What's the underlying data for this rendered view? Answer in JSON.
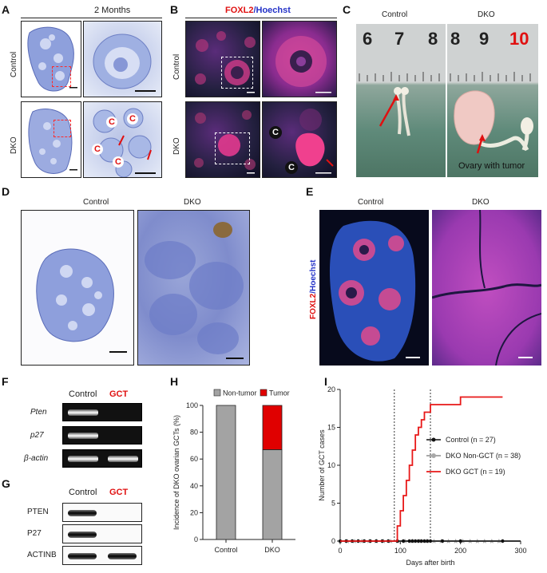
{
  "panels": {
    "a": {
      "letter": "A",
      "title": "2 Months",
      "row1": "Control",
      "row2": "DKO",
      "c_marks": [
        "C",
        "C",
        "C",
        "C"
      ]
    },
    "b": {
      "letter": "B",
      "title_red": "FOXL2",
      "title_blue": "/Hoechst",
      "row1": "Control",
      "row2": "DKO",
      "c_marks": [
        "C",
        "C"
      ]
    },
    "c": {
      "letter": "C",
      "col1": "Control",
      "col2": "DKO",
      "ruler_left": [
        "6",
        "7",
        "8"
      ],
      "ruler_right": [
        "8",
        "9",
        "10"
      ],
      "annotation": "Ovary with tumor"
    },
    "d": {
      "letter": "D",
      "col1": "Control",
      "col2": "DKO"
    },
    "e": {
      "letter": "E",
      "col1": "Control",
      "col2": "DKO",
      "side_red": "FOXL2",
      "side_blue": "/Hoechst"
    },
    "f": {
      "letter": "F",
      "col1": "Control",
      "col2": "GCT",
      "rows": [
        "Pten",
        "p27",
        "β-actin"
      ]
    },
    "g": {
      "letter": "G",
      "col1": "Control",
      "col2": "GCT",
      "rows": [
        "PTEN",
        "P27",
        "ACTINB"
      ]
    },
    "h": {
      "letter": "H"
    },
    "i": {
      "letter": "I"
    }
  },
  "colors": {
    "red": "#e01010",
    "control": "#111111",
    "nongct": "#a8a8a8",
    "gct": "#e81818",
    "tumor": "#e00000",
    "nontumor": "#a3a3a3"
  },
  "chart_data": [
    {
      "type": "bar",
      "panel": "H",
      "stacked": true,
      "categories": [
        "Control",
        "DKO"
      ],
      "series": [
        {
          "name": "Non-tumor",
          "values": [
            100,
            67
          ]
        },
        {
          "name": "Tumor",
          "values": [
            0,
            33
          ]
        }
      ],
      "ylabel": "Incidence of DKO ovarian GCTs (%)",
      "ylim": [
        0,
        100
      ],
      "yticks": [
        "0",
        "20",
        "40",
        "60",
        "80",
        "100"
      ],
      "legend": "top"
    },
    {
      "type": "line",
      "panel": "I",
      "xlabel": "Days after birth",
      "ylabel": "Number of GCT cases",
      "xlim": [
        0,
        300
      ],
      "ylim": [
        0,
        20
      ],
      "xticks": [
        "0",
        "100",
        "200",
        "300"
      ],
      "yticks": [
        "0",
        "5",
        "10",
        "15",
        "20"
      ],
      "vlines": [
        90,
        150
      ],
      "legend": "right",
      "series": [
        {
          "name": "Control (n = 27)",
          "x": [
            0,
            300
          ],
          "y": [
            0,
            0
          ]
        },
        {
          "name": "DKO Non-GCT (n = 38)",
          "x": [
            0,
            300
          ],
          "y": [
            0,
            0
          ]
        },
        {
          "name": "DKO GCT (n = 19)",
          "x": [
            0,
            90,
            95,
            100,
            105,
            110,
            115,
            120,
            125,
            130,
            135,
            140,
            145,
            150,
            160,
            170,
            180,
            195,
            200,
            270
          ],
          "y": [
            0,
            0,
            2,
            4,
            6,
            8,
            10,
            12,
            14,
            15,
            16,
            17,
            17,
            18,
            18,
            18,
            18,
            18,
            19,
            19
          ]
        }
      ]
    }
  ]
}
